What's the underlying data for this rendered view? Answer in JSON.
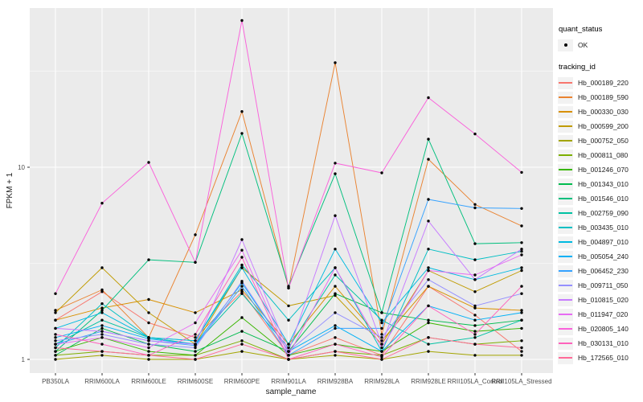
{
  "figure": {
    "background": "#ffffff",
    "panel_background": "#ebebeb",
    "grid_color": "#ffffff",
    "tick_text_color": "#4d4d4d",
    "point_color": "#000000"
  },
  "axes": {
    "x_title": "sample_name",
    "y_title": "FPKM + 1",
    "y_scale": "log10",
    "y_major_ticks": [
      {
        "label": "10",
        "value": 10
      },
      {
        "label": "1",
        "value": 1
      }
    ],
    "y_minor_values": [
      31.62,
      3.162
    ]
  },
  "legend": {
    "quant_title": "quant_status",
    "quant_items": [
      {
        "label": "OK",
        "marker": "point"
      }
    ],
    "tracking_title": "tracking_id"
  },
  "chart_data": {
    "type": "line",
    "xlabel": "sample_name",
    "ylabel": "FPKM + 1",
    "y_scale": "log10",
    "ylim": [
      1,
      70
    ],
    "grid": "on",
    "legend_position": "right",
    "point_marker": "black dot on every value",
    "samples": [
      "PB350LA",
      "RRIM600LA",
      "RRIM600LE",
      "RRIM600SE",
      "RRIM600PE",
      "RRIM901LA",
      "RRIM928BA",
      "RRIM928LA",
      "RRIM928LE",
      "RRII105LA_Control",
      "RRII105LA_Stressed"
    ],
    "series": [
      {
        "name": "Hb_000189_220",
        "color": "#F8766D",
        "values": [
          1.6,
          2.25,
          1.55,
          1.3,
          2.25,
          1.05,
          1.3,
          1.05,
          2.4,
          1.7,
          1.1
        ]
      },
      {
        "name": "Hb_000189_590",
        "color": "#EA8331",
        "values": [
          1.8,
          2.3,
          1.3,
          4.45,
          19.5,
          2.35,
          35.0,
          1.35,
          11.0,
          6.4,
          4.95
        ]
      },
      {
        "name": "Hb_000330_030",
        "color": "#D89000",
        "values": [
          1.6,
          1.85,
          2.05,
          1.75,
          2.3,
          1.2,
          2.4,
          1.25,
          2.4,
          1.85,
          1.8
        ]
      },
      {
        "name": "Hb_000599_200",
        "color": "#C09B00",
        "values": [
          1.75,
          3.0,
          1.75,
          1.2,
          3.0,
          1.9,
          2.15,
          1.2,
          2.9,
          2.25,
          2.9
        ]
      },
      {
        "name": "Hb_000752_050",
        "color": "#A3A500",
        "values": [
          1.0,
          1.05,
          1.0,
          1.0,
          1.1,
          1.0,
          1.05,
          1.0,
          1.1,
          1.05,
          1.05
        ]
      },
      {
        "name": "Hb_000811_080",
        "color": "#7CAE00",
        "values": [
          1.05,
          1.1,
          1.05,
          1.05,
          1.25,
          1.0,
          1.1,
          1.05,
          1.3,
          1.2,
          1.25
        ]
      },
      {
        "name": "Hb_001246_070",
        "color": "#39B600",
        "values": [
          1.1,
          1.3,
          1.1,
          1.05,
          1.65,
          1.05,
          1.2,
          1.1,
          1.55,
          1.4,
          1.45
        ]
      },
      {
        "name": "Hb_001343_010",
        "color": "#00BB4E",
        "values": [
          1.05,
          1.45,
          1.2,
          1.1,
          1.4,
          1.1,
          2.2,
          1.75,
          1.6,
          1.5,
          1.6
        ]
      },
      {
        "name": "Hb_001546_010",
        "color": "#00BF7D",
        "values": [
          1.1,
          1.8,
          3.3,
          3.2,
          15.0,
          2.4,
          9.25,
          1.75,
          14.0,
          4.0,
          4.05
        ]
      },
      {
        "name": "Hb_002759_090",
        "color": "#00C1A3",
        "values": [
          1.2,
          1.6,
          1.3,
          1.2,
          2.2,
          1.15,
          2.75,
          1.6,
          1.2,
          1.3,
          1.6
        ]
      },
      {
        "name": "Hb_003435_010",
        "color": "#00BFC4",
        "values": [
          1.15,
          1.95,
          1.3,
          1.25,
          3.1,
          1.6,
          3.0,
          1.1,
          3.75,
          3.3,
          3.65
        ]
      },
      {
        "name": "Hb_004897_010",
        "color": "#00BAE0",
        "values": [
          1.45,
          1.75,
          1.3,
          1.25,
          3.0,
          1.2,
          3.75,
          1.55,
          3.0,
          2.6,
          3.0
        ]
      },
      {
        "name": "Hb_005054_240",
        "color": "#00B0F6",
        "values": [
          1.3,
          1.5,
          1.28,
          1.2,
          2.5,
          1.1,
          1.5,
          1.1,
          1.9,
          1.6,
          1.75
        ]
      },
      {
        "name": "Hb_006452_230",
        "color": "#35A2FF",
        "values": [
          1.2,
          1.4,
          1.25,
          1.18,
          2.4,
          1.05,
          1.45,
          1.45,
          6.8,
          6.15,
          6.1
        ]
      },
      {
        "name": "Hb_009711_050",
        "color": "#9590FF",
        "values": [
          1.25,
          1.35,
          1.2,
          1.15,
          2.55,
          1.1,
          1.75,
          1.3,
          2.6,
          1.9,
          2.2
        ]
      },
      {
        "name": "Hb_010815_020",
        "color": "#C77CFF",
        "values": [
          1.45,
          1.4,
          1.25,
          1.2,
          4.2,
          1.1,
          5.6,
          1.2,
          5.25,
          2.6,
          3.75
        ]
      },
      {
        "name": "Hb_011947_020",
        "color": "#E76BF3",
        "values": [
          1.2,
          1.3,
          1.15,
          1.55,
          3.7,
          1.05,
          3.0,
          1.15,
          2.9,
          2.75,
          3.5
        ]
      },
      {
        "name": "Hb_020805_140",
        "color": "#FA62DB",
        "values": [
          2.2,
          6.5,
          10.6,
          3.2,
          58.0,
          2.35,
          10.5,
          9.35,
          23.0,
          14.9,
          9.4
        ]
      },
      {
        "name": "Hb_030131_010",
        "color": "#FF62BC",
        "values": [
          1.35,
          1.2,
          1.05,
          1.35,
          3.4,
          1.0,
          1.2,
          1.03,
          1.9,
          1.35,
          2.4
        ]
      },
      {
        "name": "Hb_172565_010",
        "color": "#FF6A98",
        "values": [
          1.15,
          1.1,
          1.05,
          1.0,
          1.2,
          1.0,
          1.1,
          1.0,
          1.3,
          1.2,
          1.15
        ]
      }
    ]
  }
}
